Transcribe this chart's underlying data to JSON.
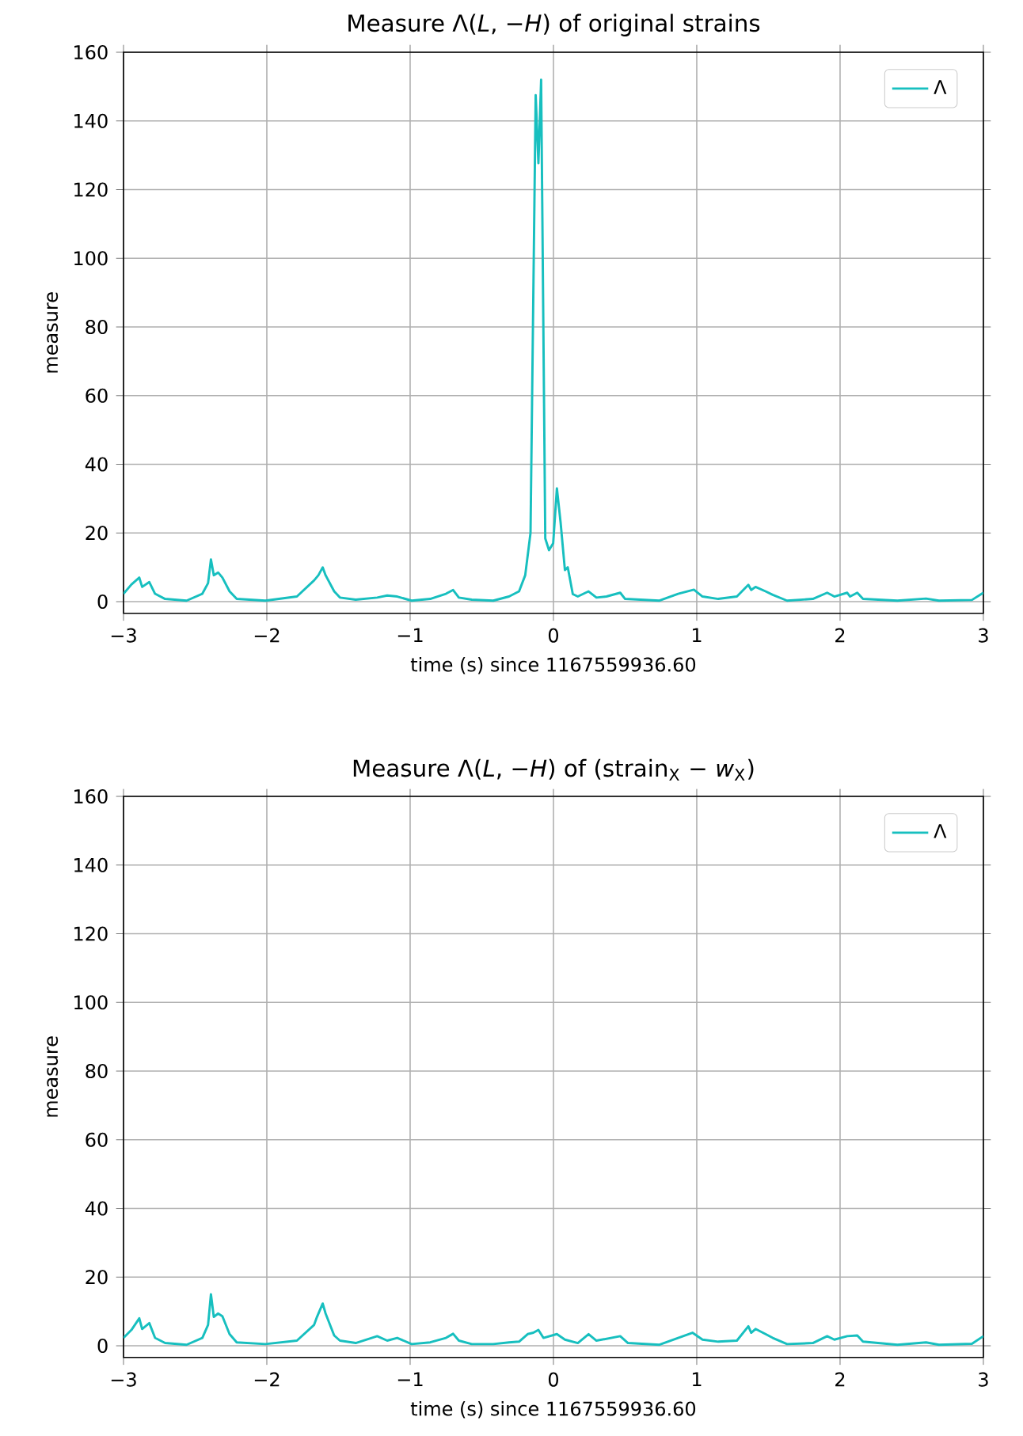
{
  "chart_data": [
    {
      "type": "line",
      "title": "Measure Λ(*L*, −*H*) of original strains",
      "xlabel": "time (s) since 1167559936.60",
      "ylabel": "measure",
      "xlim": [
        -3,
        3
      ],
      "ylim": [
        -3.4,
        160
      ],
      "xticks": [
        {
          "value": -3,
          "label": "−3"
        },
        {
          "value": -2,
          "label": "−2"
        },
        {
          "value": -1,
          "label": "−1"
        },
        0,
        1,
        2,
        3
      ],
      "yticks": [
        0,
        20,
        40,
        60,
        80,
        100,
        120,
        140,
        160
      ],
      "grid": true,
      "legend": "top right",
      "series": [
        {
          "name": "Λ",
          "color": "#17bfbf",
          "x": [
            -3.0,
            -2.945,
            -2.89,
            -2.87,
            -2.82,
            -2.78,
            -2.71,
            -2.56,
            -2.45,
            -2.41,
            -2.39,
            -2.37,
            -2.34,
            -2.31,
            -2.26,
            -2.21,
            -2.01,
            -1.79,
            -1.67,
            -1.64,
            -1.61,
            -1.59,
            -1.53,
            -1.49,
            -1.38,
            -1.23,
            -1.16,
            -1.09,
            -0.99,
            -0.86,
            -0.75,
            -0.7,
            -0.66,
            -0.57,
            -0.42,
            -0.31,
            -0.24,
            -0.197,
            -0.16,
            -0.124,
            -0.105,
            -0.086,
            -0.057,
            -0.031,
            -0.002,
            0.024,
            0.05,
            0.08,
            0.1,
            0.135,
            0.17,
            0.245,
            0.3,
            0.37,
            0.466,
            0.5,
            0.74,
            0.87,
            0.98,
            1.04,
            1.15,
            1.28,
            1.36,
            1.38,
            1.41,
            1.48,
            1.53,
            1.63,
            1.81,
            1.91,
            1.96,
            2.05,
            2.07,
            2.12,
            2.16,
            2.4,
            2.6,
            2.69,
            2.92,
            3.0
          ],
          "values": [
            2.3,
            5,
            7,
            4.3,
            5.7,
            2.3,
            0.8,
            0.3,
            2.3,
            5.4,
            12.3,
            7.7,
            8.5,
            7,
            3,
            0.8,
            0.3,
            1.5,
            6.2,
            7.7,
            10,
            7.7,
            3,
            1.2,
            0.6,
            1.2,
            1.8,
            1.5,
            0.3,
            0.8,
            2.3,
            3.4,
            1.2,
            0.6,
            0.3,
            1.5,
            3,
            7.7,
            20,
            147.5,
            127.7,
            152,
            18.4,
            15,
            17,
            33,
            23,
            9.2,
            10,
            2.2,
            1.5,
            3,
            1.2,
            1.5,
            2.6,
            0.8,
            0.3,
            2.3,
            3.5,
            1.5,
            0.8,
            1.5,
            4.9,
            3.4,
            4.3,
            3,
            2,
            0.3,
            0.8,
            2.6,
            1.5,
            2.6,
            1.5,
            2.6,
            0.8,
            0.3,
            0.9,
            0.3,
            0.5,
            2.6
          ]
        }
      ]
    },
    {
      "type": "line",
      "title": "Measure Λ(*L*, −*H*) of (strain$_{X}$ − *w*$_{X}$)",
      "xlabel": "time (s) since 1167559936.60",
      "ylabel": "measure",
      "xlim": [
        -3,
        3
      ],
      "ylim": [
        -3.4,
        160
      ],
      "xticks": [
        {
          "value": -3,
          "label": "−3"
        },
        {
          "value": -2,
          "label": "−2"
        },
        {
          "value": -1,
          "label": "−1"
        },
        0,
        1,
        2,
        3
      ],
      "yticks": [
        0,
        20,
        40,
        60,
        80,
        100,
        120,
        140,
        160
      ],
      "grid": true,
      "legend": "top right",
      "series": [
        {
          "name": "Λ",
          "color": "#17bfbf",
          "x": [
            -3.0,
            -2.945,
            -2.89,
            -2.87,
            -2.82,
            -2.78,
            -2.71,
            -2.56,
            -2.45,
            -2.41,
            -2.39,
            -2.37,
            -2.34,
            -2.31,
            -2.26,
            -2.21,
            -2.01,
            -1.79,
            -1.67,
            -1.65,
            -1.61,
            -1.59,
            -1.53,
            -1.49,
            -1.38,
            -1.23,
            -1.16,
            -1.09,
            -0.99,
            -0.86,
            -0.75,
            -0.7,
            -0.66,
            -0.57,
            -0.42,
            -0.31,
            -0.24,
            -0.18,
            -0.14,
            -0.105,
            -0.07,
            0.024,
            0.08,
            0.17,
            0.245,
            0.3,
            0.466,
            0.52,
            0.74,
            0.87,
            0.97,
            1.04,
            1.15,
            1.28,
            1.36,
            1.38,
            1.41,
            1.48,
            1.53,
            1.63,
            1.81,
            1.91,
            1.96,
            2.05,
            2.12,
            2.16,
            2.4,
            2.6,
            2.69,
            2.92,
            3.0
          ],
          "values": [
            2.3,
            4.6,
            8,
            4.9,
            6.6,
            2.3,
            0.8,
            0.3,
            2.3,
            6.1,
            15,
            8.4,
            9.4,
            8.6,
            3.4,
            1,
            0.5,
            1.5,
            6.1,
            8.4,
            12.3,
            9.4,
            3,
            1.5,
            0.8,
            2.8,
            1.5,
            2.3,
            0.5,
            1,
            2.3,
            3.5,
            1.5,
            0.5,
            0.5,
            1,
            1.2,
            3.4,
            3.8,
            4.6,
            2.3,
            3.4,
            1.8,
            0.8,
            3.4,
            1.5,
            2.8,
            0.8,
            0.3,
            2.3,
            3.8,
            1.8,
            1.2,
            1.5,
            5.7,
            3.8,
            4.9,
            3.4,
            2.3,
            0.5,
            0.8,
            2.8,
            1.8,
            2.8,
            3,
            1.2,
            0.3,
            1,
            0.3,
            0.6,
            2.8
          ]
        }
      ]
    }
  ]
}
